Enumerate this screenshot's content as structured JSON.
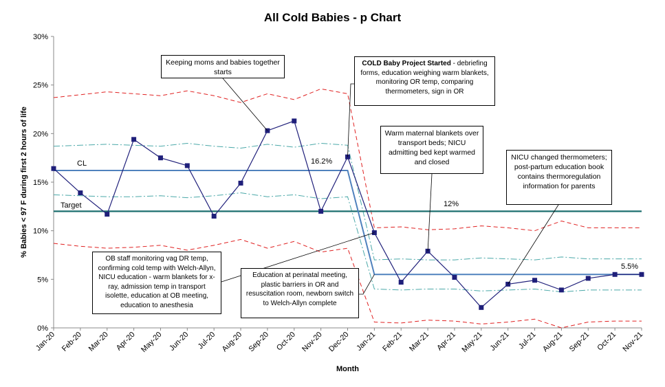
{
  "chart_data": {
    "type": "line",
    "title": "All Cold Babies - p Chart",
    "xlabel": "Month",
    "ylabel": "% Babies < 97 F during first 2 hours of life",
    "ylim": [
      0,
      30
    ],
    "yticks": [
      "0%",
      "5%",
      "10%",
      "15%",
      "20%",
      "25%",
      "30%"
    ],
    "categories": [
      "Jan-20",
      "Feb-20",
      "Mar-20",
      "Apr-20",
      "May-20",
      "Jun-20",
      "Jul-20",
      "Aug-20",
      "Sep-20",
      "Oct-20",
      "Nov-20",
      "Dec-20",
      "Jan-21",
      "Feb-21",
      "Mar-21",
      "Apr-21",
      "May-21",
      "Jun-21",
      "Jul-21",
      "Aug-21",
      "Sep-21",
      "Oct-21",
      "Nov-21"
    ],
    "series": [
      {
        "role": "data",
        "color": "#1f1f7a",
        "values": [
          16.4,
          13.9,
          11.7,
          19.4,
          17.5,
          16.7,
          11.5,
          14.9,
          20.3,
          21.3,
          12.0,
          17.6,
          9.8,
          4.7,
          7.9,
          5.2,
          2.1,
          4.5,
          4.9,
          3.9,
          5.1,
          5.5,
          5.5
        ]
      },
      {
        "role": "cl",
        "color": "#4f81bd",
        "values": [
          16.2,
          16.2,
          16.2,
          16.2,
          16.2,
          16.2,
          16.2,
          16.2,
          16.2,
          16.2,
          16.2,
          16.2,
          5.5,
          5.5,
          5.5,
          5.5,
          5.5,
          5.5,
          5.5,
          5.5,
          5.5,
          5.5,
          5.5
        ]
      },
      {
        "role": "target",
        "color": "#1b6e6e",
        "values": [
          12,
          12,
          12,
          12,
          12,
          12,
          12,
          12,
          12,
          12,
          12,
          12,
          12,
          12,
          12,
          12,
          12,
          12,
          12,
          12,
          12,
          12,
          12
        ]
      },
      {
        "role": "ucl",
        "color": "#e02020",
        "values": [
          23.7,
          24.0,
          24.3,
          24.1,
          23.9,
          24.4,
          23.9,
          23.2,
          24.1,
          23.5,
          24.6,
          24.1,
          10.3,
          10.4,
          10.1,
          10.2,
          10.5,
          10.3,
          10.0,
          11.0,
          10.3,
          10.3,
          10.3
        ]
      },
      {
        "role": "lcl",
        "color": "#e02020",
        "values": [
          8.7,
          8.4,
          8.2,
          8.3,
          8.5,
          8.0,
          8.5,
          9.1,
          8.2,
          8.9,
          7.8,
          8.2,
          0.6,
          0.5,
          0.8,
          0.7,
          0.4,
          0.6,
          0.9,
          0.0,
          0.6,
          0.7,
          0.7
        ]
      },
      {
        "role": "upper-2sigma",
        "color": "#4aa8a8",
        "values": [
          18.7,
          18.8,
          18.9,
          18.8,
          18.7,
          19.0,
          18.7,
          18.5,
          18.9,
          18.6,
          19.0,
          18.8,
          7.0,
          7.1,
          7.0,
          7.0,
          7.2,
          7.1,
          7.0,
          7.3,
          7.1,
          7.1,
          7.1
        ]
      },
      {
        "role": "lower-2sigma",
        "color": "#4aa8a8",
        "values": [
          13.7,
          13.6,
          13.5,
          13.5,
          13.6,
          13.4,
          13.6,
          13.9,
          13.5,
          13.7,
          13.3,
          13.5,
          4.0,
          3.9,
          4.0,
          4.0,
          3.8,
          3.9,
          4.0,
          3.7,
          3.9,
          3.9,
          3.9
        ]
      }
    ],
    "labels": {
      "cl": "CL",
      "target": "Target",
      "cl_before_value": "16.2%",
      "target_value": "12%",
      "cl_after_value": "5.5%"
    },
    "grid": false,
    "legend": "none"
  },
  "annotations": {
    "keeping": "Keeping moms and babies together starts",
    "cold_title": "COLD Baby Project Started",
    "cold_rest": " - debriefing forms, education weighing warm blankets, monitoring OR temp, comparing thermometers, sign in OR",
    "warm": "Warm maternal blankets over transport beds; NICU admitting bed kept warmed and closed",
    "nicu": "NICU changed thermometers; post-partum education book contains thermoregulation information for parents",
    "ob": "OB staff monitoring vag DR temp, confirming cold temp with Welch-Allyn, NICU education - warm blankets for x-ray, admission temp in transport isolette, education at OB meeting, education to anesthesia",
    "edu": "Education at perinatal meeting, plastic barriers in OR and resuscitation room, newborn switch to Welch-Allyn complete"
  }
}
